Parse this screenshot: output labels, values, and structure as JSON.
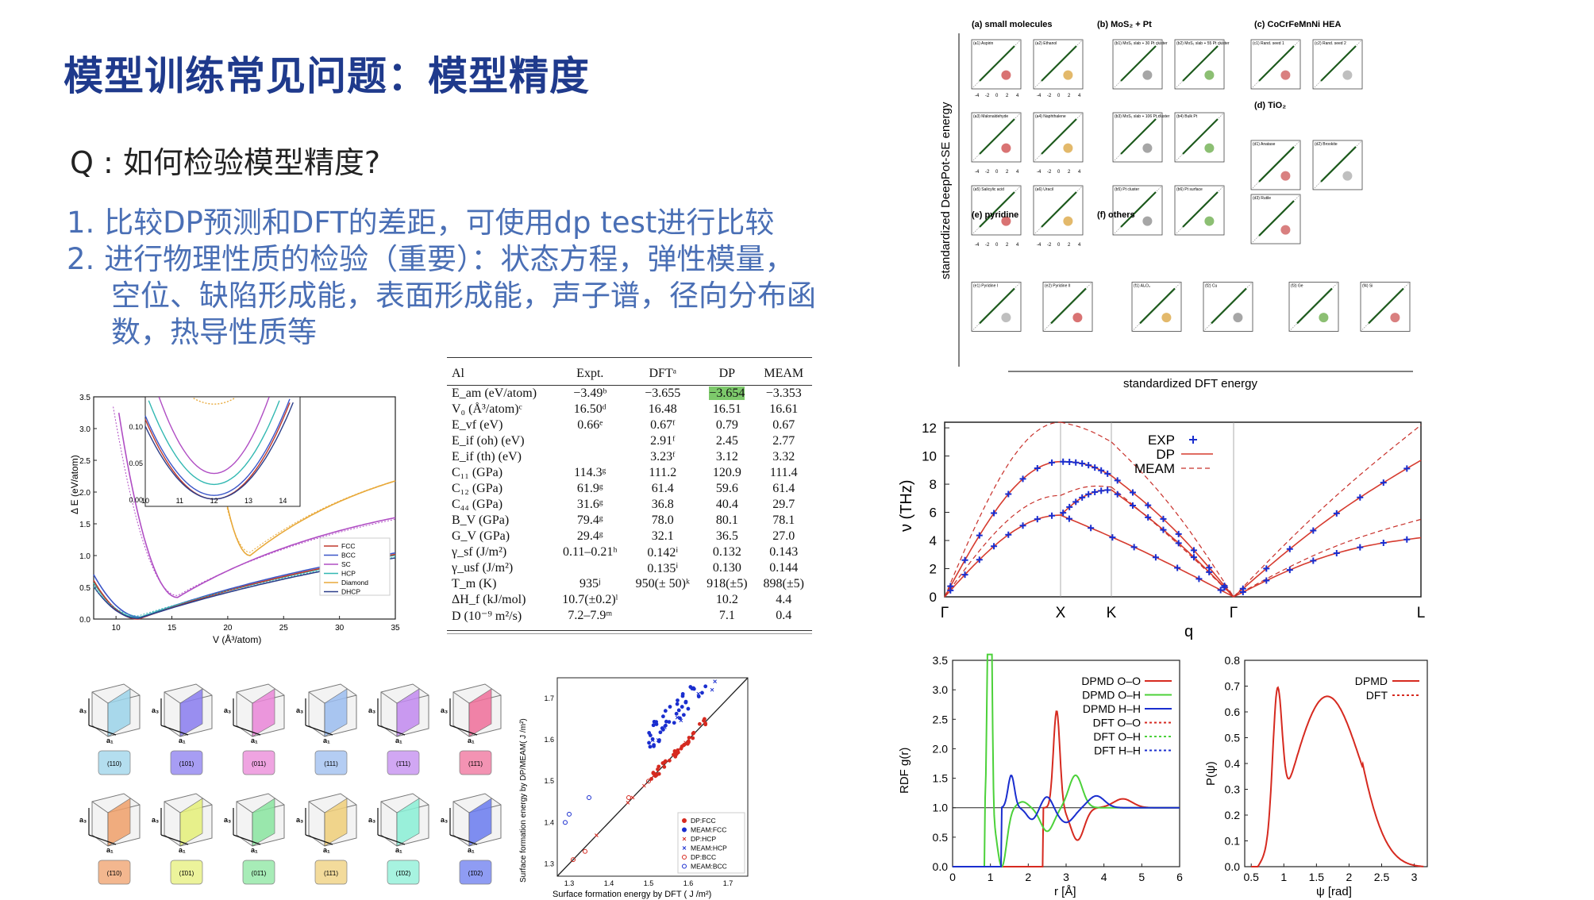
{
  "slide": {
    "title": "模型训练常见问题：模型精度",
    "question": "Q : 如何检验模型精度?",
    "items": [
      "1. 比较DP预测和DFT的差距，可使用dp test进行比较",
      "2. 进行物理性质的检验（重要）：状态方程，弹性模量，",
      "空位、缺陷形成能，表面形成能，声子谱，径向分布函",
      "数，热导性质等"
    ]
  },
  "eos_plot": {
    "ylabel": "Δ E (eV/atom)",
    "xlabel": "V (Å³/atom)",
    "yticks": [
      "0.0",
      "0.5",
      "1.0",
      "1.5",
      "2.0",
      "2.5",
      "3.0",
      "3.5"
    ],
    "xticks": [
      "10",
      "15",
      "20",
      "25",
      "30",
      "35"
    ],
    "inset_yticks": [
      "0.00",
      "0.05",
      "0.10"
    ],
    "inset_xticks": [
      "10",
      "11",
      "12",
      "13",
      "14"
    ],
    "legend": [
      "FCC",
      "BCC",
      "SC",
      "HCP",
      "Diamond",
      "DHCP"
    ],
    "colors": {
      "FCC": "#c0392b",
      "BCC": "#3b56c8",
      "SC": "#b04ec4",
      "HCP": "#32b8b2",
      "Diamond": "#e8a93a",
      "DHCP": "#2c3e8a"
    }
  },
  "al_table": {
    "headers": [
      "Al",
      "Expt.",
      "DFTᵃ",
      "DP",
      "MEAM"
    ],
    "rows": [
      [
        "E_am (eV/atom)",
        "−3.49ᵇ",
        "−3.655",
        "−3.654",
        "−3.353"
      ],
      [
        "V₀ (Å³/atom)ᶜ",
        "16.50ᵈ",
        "16.48",
        "16.51",
        "16.61"
      ],
      [
        "E_vf (eV)",
        "0.66ᵉ",
        "0.67ᶠ",
        "0.79",
        "0.67"
      ],
      [
        "E_if (oh) (eV)",
        "",
        "2.91ᶠ",
        "2.45",
        "2.77"
      ],
      [
        "E_if (th) (eV)",
        "",
        "3.23ᶠ",
        "3.12",
        "3.32"
      ],
      [
        "C₁₁ (GPa)",
        "114.3ᵍ",
        "111.2",
        "120.9",
        "111.4"
      ],
      [
        "C₁₂ (GPa)",
        "61.9ᵍ",
        "61.4",
        "59.6",
        "61.4"
      ],
      [
        "C₄₄ (GPa)",
        "31.6ᵍ",
        "36.8",
        "40.4",
        "29.7"
      ],
      [
        "B_V (GPa)",
        "79.4ᵍ",
        "78.0",
        "80.1",
        "78.1"
      ],
      [
        "G_V (GPa)",
        "29.4ᵍ",
        "32.1",
        "36.5",
        "27.0"
      ],
      [
        "γ_sf (J/m²)",
        "0.11–0.21ʰ",
        "0.142ⁱ",
        "0.132",
        "0.143"
      ],
      [
        "γ_usf (J/m²)",
        "",
        "0.135ⁱ",
        "0.130",
        "0.144"
      ],
      [
        "T_m (K)",
        "935ʲ",
        "950(± 50)ᵏ",
        "918(±5)",
        "898(±5)"
      ],
      [
        "ΔH_f (kJ/mol)",
        "10.7(±0.2)ˡ",
        "",
        "10.2",
        "4.4"
      ],
      [
        "D (10⁻⁹ m²/s)",
        "7.2–7.9ᵐ",
        "",
        "7.1",
        "0.4"
      ]
    ]
  },
  "parity_grid": {
    "ylabel": "standardized DeepPot-SE energy",
    "xlabel": "standardized DFT energy",
    "group_titles": [
      "(a) small molecules",
      "(b) MoS₂ + Pt",
      "(c) CoCrFeMnNi HEA",
      "(d) TiO₂",
      "(e) pyridine",
      "(f) others"
    ],
    "panels": [
      "(a1) Aspirin",
      "(a2) Ethanol",
      "(b1) MoS₂ slab + 30 Pt cluster",
      "(b2) MoS₂ slab + 55 Pt cluster",
      "(c1) Rand. seed 1",
      "(c2) Rand. seed 2",
      "(a3) Malonaldehyde",
      "(a4) Naphthalene",
      "(b3) MoS₂ slab + 106 Pt cluster",
      "(b4) Bulk Pt",
      "(d1) Anatase",
      "(d2) Brookite",
      "(a5) Salicylic acid",
      "(a6) Uracil",
      "(b5) Pt cluster",
      "(b6) Pt surface",
      "(d3) Rutile",
      "(e1) Pyridine I",
      "(e2) Pyridine II",
      "(f1) Al₂O₃",
      "(f2) Cu",
      "(f3) Ge",
      "(f4) Si"
    ],
    "tick_labels": [
      "-4",
      "-2",
      "0",
      "2",
      "4"
    ]
  },
  "phonon": {
    "ylabel": "ν (THz)",
    "xlabel": "q",
    "yticks": [
      "0",
      "2",
      "4",
      "6",
      "8",
      "10",
      "12"
    ],
    "qpoints": [
      "Γ",
      "X",
      "K",
      "Γ",
      "L"
    ],
    "legend": [
      "EXP",
      "DP",
      "MEAM"
    ]
  },
  "surfaces": {
    "labels": [
      "(110)",
      "(101)",
      "(011)",
      "(111)",
      "(1̄11)",
      "(11̄1)",
      "(1̄10)",
      "(1̄01)",
      "(01̄1)",
      "(11̄1)",
      "(1̄02)",
      "(1̄02)"
    ],
    "colors": [
      "#9bd4ea",
      "#8a7df0",
      "#ea86d8",
      "#9cbdf0",
      "#c28af0",
      "#f06f9a",
      "#f0a06a",
      "#e6f07a",
      "#8ae6a0",
      "#f0cf7a",
      "#8af0d6",
      "#6a7cf0"
    ],
    "axes": [
      "a₁",
      "a₂",
      "a₃"
    ]
  },
  "surface_energy": {
    "ylabel": "Surface formation energy by DP/MEAM( J /m²)",
    "xlabel": "Surface formation energy by DFT ( J /m²)",
    "xticks": [
      "1.3",
      "1.4",
      "1.5",
      "1.6",
      "1.7"
    ],
    "yticks": [
      "1.3",
      "1.4",
      "1.5",
      "1.6",
      "1.7"
    ],
    "legend": [
      "DP:FCC",
      "MEAM:FCC",
      "DP:HCP",
      "MEAM:HCP",
      "DP:BCC",
      "MEAM:BCC"
    ]
  },
  "rdf": {
    "ylabel": "RDF g(r)",
    "xlabel": "r [Å]",
    "yticks": [
      "0.0",
      "0.5",
      "1.0",
      "1.5",
      "2.0",
      "2.5",
      "3.0",
      "3.5"
    ],
    "xticks": [
      "0",
      "1",
      "2",
      "3",
      "4",
      "5",
      "6"
    ],
    "legend": [
      "DPMD O–O",
      "DPMD O–H",
      "DPMD H–H",
      "DFT O–O",
      "DFT O–H",
      "DFT H–H"
    ]
  },
  "adf": {
    "ylabel": "P(ψ)",
    "xlabel": "ψ [rad]",
    "yticks": [
      "0.0",
      "0.1",
      "0.2",
      "0.3",
      "0.4",
      "0.5",
      "0.6",
      "0.7",
      "0.8"
    ],
    "xticks": [
      "0.5",
      "1",
      "1.5",
      "2",
      "2.5",
      "3"
    ],
    "legend": [
      "DPMD",
      "DFT"
    ]
  }
}
